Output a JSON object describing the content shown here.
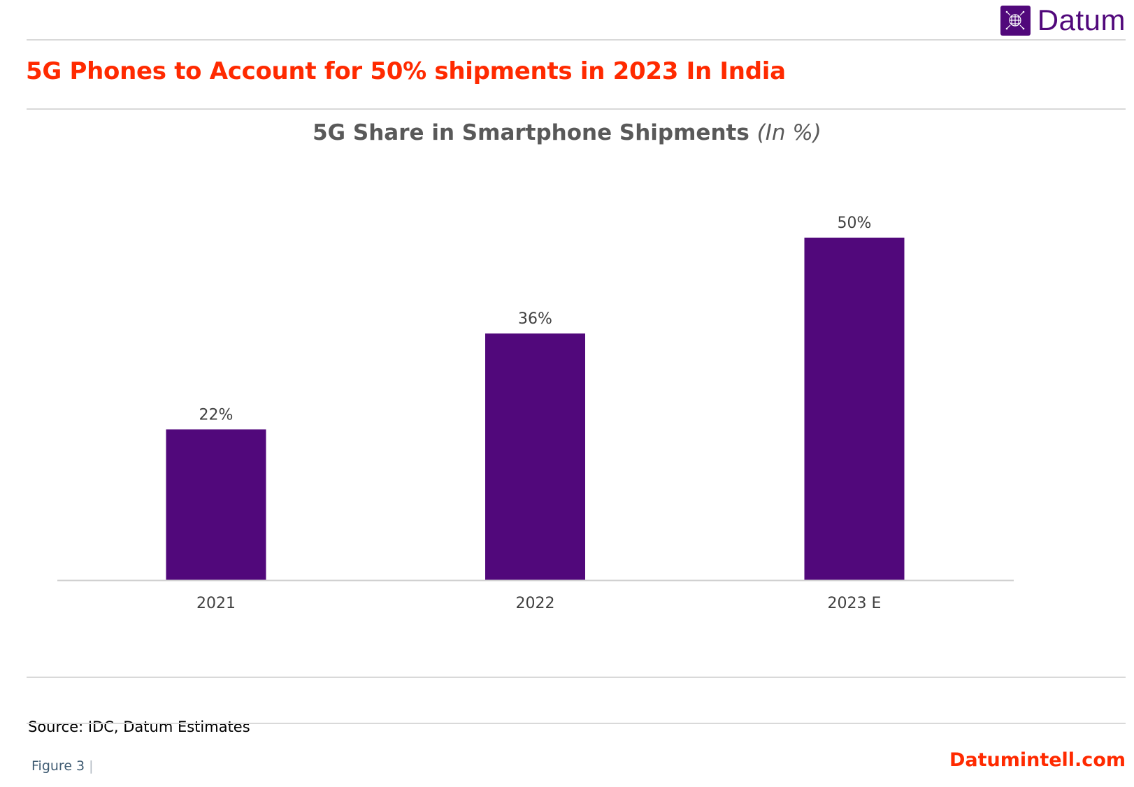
{
  "brand": {
    "name": "Datum",
    "icon": "globe-grid-icon",
    "color": "#51087b"
  },
  "headline": "5G Phones to Account for 50% shipments in 2023 In India",
  "chart_data": {
    "type": "bar",
    "title": "5G Share in Smartphone Shipments",
    "title_unit": "(In %)",
    "categories": [
      "2021",
      "2022",
      "2023 E"
    ],
    "values": [
      22,
      36,
      50
    ],
    "data_labels": [
      "22%",
      "36%",
      "50%"
    ],
    "xlabel": "",
    "ylabel": "",
    "ylim": [
      0,
      50
    ],
    "grid": false,
    "legend": "none",
    "bar_color": "#51087b"
  },
  "footer": {
    "source": "Source: IDC, Datum Estimates",
    "figure_label": "Figure 3",
    "figure_separator": "|",
    "website": "Datumintell.com"
  },
  "colors": {
    "accent": "#ff2a00",
    "bar": "#51087b",
    "rule": "#d9d9d9"
  }
}
